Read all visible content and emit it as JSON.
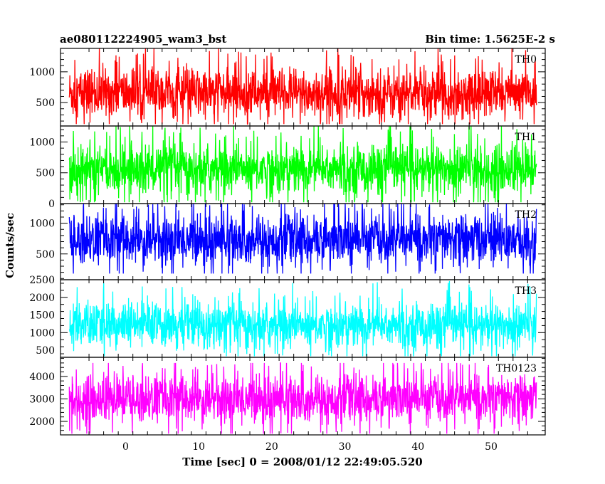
{
  "chart_data": {
    "type": "line",
    "title": "ae080112224905_wam3_bst",
    "bin_time_label": "Bin time: 1.5625E-2 s",
    "xlabel": "Time [sec] 0 = 2008/01/12 22:49:05.520",
    "ylabel": "Counts/sec",
    "xlim": [
      -8.9,
      57.4
    ],
    "data_x_range": [
      -7.7,
      56.2
    ],
    "x_ticks": [
      0,
      10,
      20,
      30,
      40,
      50
    ],
    "x_tick_labels": [
      "0",
      "10",
      "20",
      "30",
      "40",
      "50"
    ],
    "grid": false,
    "panels": [
      {
        "name": "TH0",
        "color": "#ff0000",
        "ylim": [
          120,
          1380
        ],
        "y_ticks": [
          500,
          1000
        ],
        "y_tick_labels": [
          "500",
          "1000"
        ],
        "mean": 650,
        "sigma": 210,
        "data_min": 150,
        "data_max": 1380
      },
      {
        "name": "TH1",
        "color": "#00ff00",
        "ylim": [
          0,
          1260
        ],
        "y_ticks": [
          0,
          500,
          1000
        ],
        "y_tick_labels": [
          "0",
          "500",
          "1000"
        ],
        "mean": 560,
        "sigma": 210,
        "data_min": 20,
        "data_max": 1260
      },
      {
        "name": "TH2",
        "color": "#0000ff",
        "ylim": [
          80,
          1320
        ],
        "y_ticks": [
          500,
          1000
        ],
        "y_tick_labels": [
          "500",
          "1000"
        ],
        "mean": 730,
        "sigma": 210,
        "data_min": 180,
        "data_max": 1320
      },
      {
        "name": "TH3",
        "color": "#00ffff",
        "ylim": [
          300,
          2500
        ],
        "y_ticks": [
          500,
          1000,
          1500,
          2000,
          2500
        ],
        "y_tick_labels": [
          "500",
          "1000",
          "1500",
          "2000",
          "2500"
        ],
        "mean": 1200,
        "sigma": 330,
        "data_min": 330,
        "data_max": 2500
      },
      {
        "name": "TH0123",
        "color": "#ff00ff",
        "ylim": [
          1400,
          4850
        ],
        "y_ticks": [
          2000,
          3000,
          4000
        ],
        "y_tick_labels": [
          "2000",
          "3000",
          "4000"
        ],
        "mean": 3000,
        "sigma": 550,
        "data_min": 1450,
        "data_max": 4600
      }
    ]
  }
}
